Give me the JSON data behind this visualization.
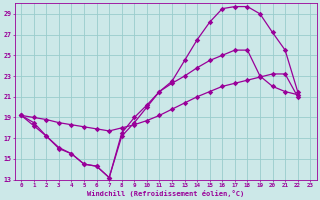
{
  "xlabel": "Windchill (Refroidissement éolien,°C)",
  "bg_color": "#cce8e8",
  "grid_color": "#99cccc",
  "line_color": "#990099",
  "xlim": [
    -0.5,
    23.5
  ],
  "ylim": [
    13,
    30
  ],
  "yticks": [
    13,
    15,
    17,
    19,
    21,
    23,
    25,
    27,
    29
  ],
  "xticks": [
    0,
    1,
    2,
    3,
    4,
    5,
    6,
    7,
    8,
    9,
    10,
    11,
    12,
    13,
    14,
    15,
    16,
    17,
    18,
    19,
    20,
    21,
    22,
    23
  ],
  "curve1_x": [
    0,
    1,
    2,
    3,
    4,
    5,
    6,
    7,
    8,
    9,
    10,
    11,
    12,
    13,
    14,
    15,
    16,
    17,
    18,
    19,
    20,
    21,
    22
  ],
  "curve1_y": [
    19.2,
    18.2,
    17.2,
    16.1,
    15.5,
    14.5,
    14.3,
    13.2,
    17.2,
    18.5,
    20.0,
    21.5,
    22.5,
    24.5,
    26.5,
    28.2,
    29.5,
    29.7,
    29.7,
    29.0,
    27.2,
    25.5,
    21.5
  ],
  "curve2_x": [
    0,
    1,
    2,
    3,
    4,
    5,
    6,
    7,
    8,
    9,
    10,
    11,
    12,
    13,
    14,
    15,
    16,
    17,
    18,
    19,
    20,
    21,
    22
  ],
  "curve2_y": [
    19.2,
    19.0,
    18.8,
    18.5,
    18.3,
    18.1,
    17.9,
    17.7,
    18.0,
    18.3,
    18.7,
    19.2,
    19.8,
    20.4,
    21.0,
    21.5,
    22.0,
    22.3,
    22.6,
    22.9,
    23.2,
    23.2,
    21.0
  ],
  "curve3_x": [
    0,
    1,
    2,
    3,
    4,
    5,
    6,
    7,
    8,
    9,
    10,
    11,
    12,
    13,
    14,
    15,
    16,
    17,
    18,
    19,
    20,
    21,
    22
  ],
  "curve3_y": [
    19.2,
    18.5,
    17.2,
    16.0,
    15.5,
    14.5,
    14.3,
    13.2,
    17.5,
    19.0,
    20.2,
    21.5,
    22.3,
    23.0,
    23.8,
    24.5,
    25.0,
    25.5,
    25.5,
    23.0,
    22.0,
    21.5,
    21.2
  ]
}
